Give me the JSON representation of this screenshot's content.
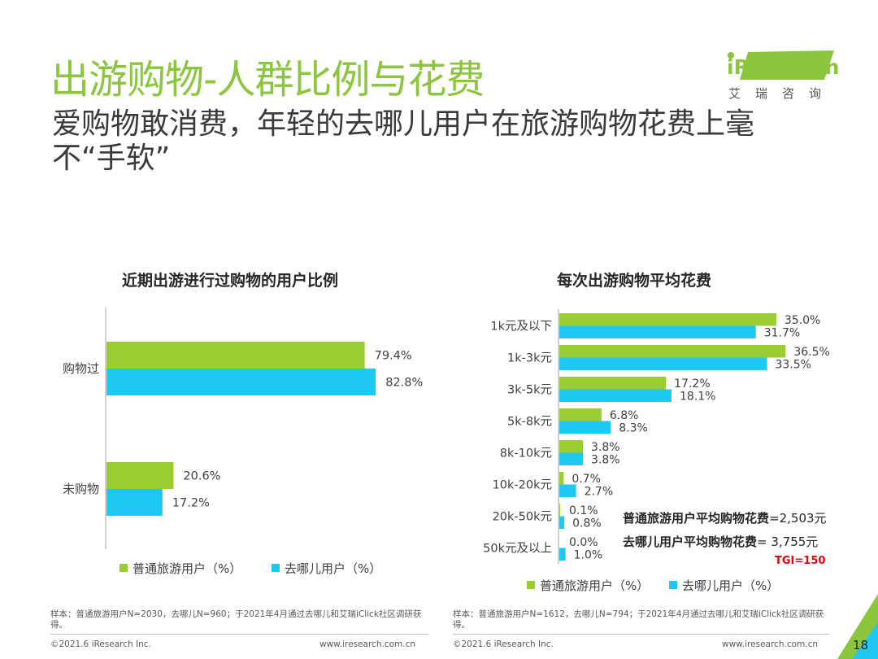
{
  "header": {
    "title": "出游购物-人群比例与花费",
    "subtitle": "爱购物敢消费，年轻的去哪儿用户在旅游购物花费上毫不“手软”"
  },
  "logo": {
    "brand": "iResearch",
    "sub": "艾瑞咨询"
  },
  "colors": {
    "green": "#9acd32",
    "cyan": "#1ec8f0",
    "title_green": "#8cc63f",
    "tgi_red": "#e60012"
  },
  "legend": {
    "series_a": "普通旅游用户（%）",
    "series_b": "去哪儿用户（%）"
  },
  "chart_data": [
    {
      "type": "bar",
      "orientation": "horizontal",
      "title": "近期出游进行过购物的用户比例",
      "categories": [
        "购物过",
        "未购物"
      ],
      "series": [
        {
          "name": "普通旅游用户（%）",
          "values": [
            79.4,
            20.6
          ]
        },
        {
          "name": "去哪儿用户（%）",
          "values": [
            82.8,
            17.2
          ]
        }
      ],
      "xlim": [
        0,
        100
      ],
      "unit": "%"
    },
    {
      "type": "bar",
      "orientation": "horizontal",
      "title": "每次出游购物平均花费",
      "categories": [
        "1k元及以下",
        "1k-3k元",
        "3k-5k元",
        "5k-8k元",
        "8k-10k元",
        "10k-20k元",
        "20k-50k元",
        "50k元及以上"
      ],
      "series": [
        {
          "name": "普通旅游用户（%）",
          "values": [
            35.0,
            36.5,
            17.2,
            6.8,
            3.8,
            0.7,
            0.1,
            0.0
          ]
        },
        {
          "name": "去哪儿用户（%）",
          "values": [
            31.7,
            33.5,
            18.1,
            8.3,
            3.8,
            2.7,
            0.8,
            1.0
          ]
        }
      ],
      "xlim": [
        0,
        40
      ],
      "unit": "%"
    }
  ],
  "averages": {
    "normal_label": "普通旅游用户平均购物花费",
    "normal_value": "=2,503元",
    "qunar_label": "去哪儿用户平均购物花费",
    "qunar_value": "= 3,755元",
    "tgi": "TGI=150"
  },
  "footer": {
    "left_note": "样本：普通旅游用户N=2030，去哪儿N=960；于2021年4月通过去哪儿和艾瑞iClick社区调研获得。",
    "right_note": "样本：普通旅游用户N=1612，去哪儿N=794；于2021年4月通过去哪儿和艾瑞iClick社区调研获得。",
    "copyright": "©2021.6 iResearch Inc.",
    "website": "www.iresearch.com.cn",
    "page_number": "18"
  }
}
